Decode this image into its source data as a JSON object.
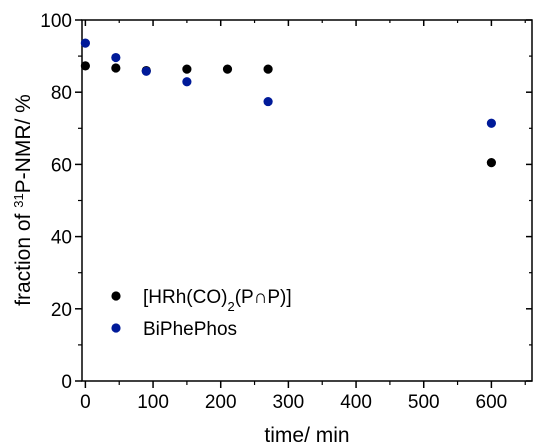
{
  "chart_data": {
    "type": "scatter",
    "xlabel": "time/ min",
    "ylabel": {
      "prefix": "fraction of ",
      "superscript": "31",
      "suffix": "P-NMR/ %"
    },
    "xlim": [
      -5,
      660
    ],
    "ylim": [
      0,
      100
    ],
    "xticks": [
      0,
      100,
      200,
      300,
      400,
      500,
      600
    ],
    "yticks": [
      0,
      20,
      40,
      60,
      80,
      100
    ],
    "legend_position": "bottom-left",
    "series": [
      {
        "name": "[HRh(CO)2(P∩P)]",
        "label_parts": [
          {
            "text": "[HRh(CO)",
            "sub": false
          },
          {
            "text": "2",
            "sub": true
          },
          {
            "text": "(P∩P)]",
            "sub": false
          }
        ],
        "color": "#000000",
        "x": [
          0,
          45,
          90,
          150,
          210,
          270,
          600
        ],
        "y": [
          87.3,
          86.7,
          86.0,
          86.4,
          86.4,
          86.4,
          60.5
        ]
      },
      {
        "name": "BiPhePhos",
        "label_parts": [
          {
            "text": "BiPhePhos",
            "sub": false
          }
        ],
        "color": "#001a99",
        "x": [
          0,
          45,
          90,
          150,
          270,
          600
        ],
        "y": [
          93.6,
          89.6,
          85.8,
          82.9,
          77.4,
          71.4
        ]
      }
    ]
  }
}
